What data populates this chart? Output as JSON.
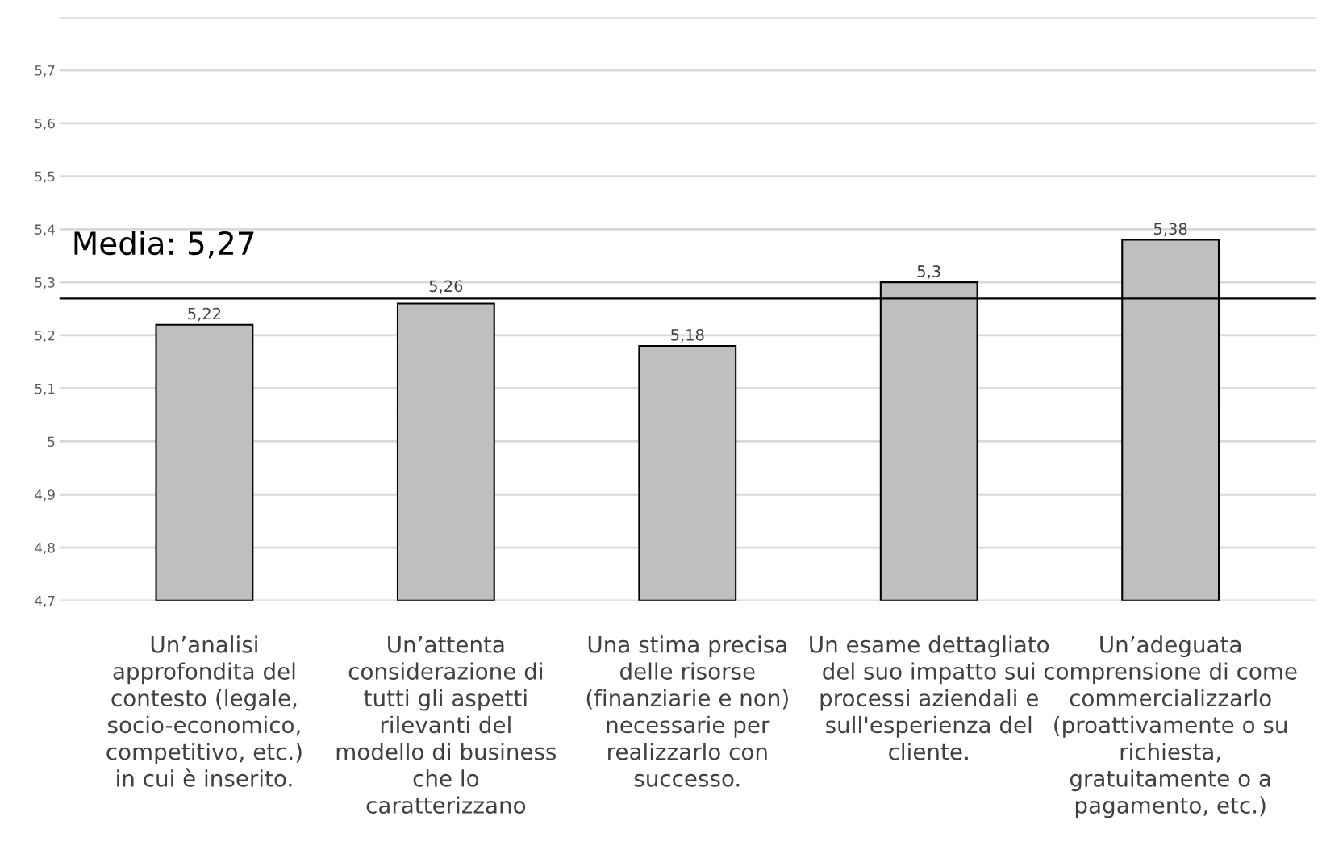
{
  "chart_data": {
    "type": "bar",
    "categories": [
      "Un’analisi approfondita del contesto (legale, socio-economico, competitivo, etc.) in cui è inserito.",
      "Un’attenta considerazione di tutti gli aspetti rilevanti del modello di business che lo caratterizzano",
      "Una stima precisa delle risorse (finanziarie e non) necessarie per realizzarlo con successo.",
      "Un esame dettagliato del suo impatto sui processi aziendali e sull'esperienza del cliente.",
      "Un’adeguata comprensione di come commercializzarlo (proattivamente o su richiesta, gratuitamente o a pagamento, etc.)"
    ],
    "values": [
      5.22,
      5.26,
      5.18,
      5.3,
      5.38
    ],
    "value_labels": [
      "5,22",
      "5,26",
      "5,18",
      "5,3",
      "5,38"
    ],
    "color": "#bfbfbf",
    "ylim": [
      4.7,
      5.8
    ],
    "yticks": [
      {
        "value": 4.7,
        "label": "4,7"
      },
      {
        "value": 4.8,
        "label": "4,8"
      },
      {
        "value": 4.9,
        "label": "4,9"
      },
      5,
      {
        "value": 5.1,
        "label": "5,1"
      },
      {
        "value": 5.2,
        "label": "5,2"
      },
      {
        "value": 5.3,
        "label": "5,3"
      },
      {
        "value": 5.4,
        "label": "5,4"
      },
      {
        "value": 5.5,
        "label": "5,5"
      },
      {
        "value": 5.6,
        "label": "5,6"
      },
      {
        "value": 5.7,
        "label": "5,7"
      },
      {
        "value": 5.8,
        "label": null
      }
    ],
    "ref_lines": [
      {
        "axis": "y",
        "value": 5.27,
        "label": "Media: 5,27",
        "color": "#000000"
      }
    ],
    "grid": "y"
  }
}
